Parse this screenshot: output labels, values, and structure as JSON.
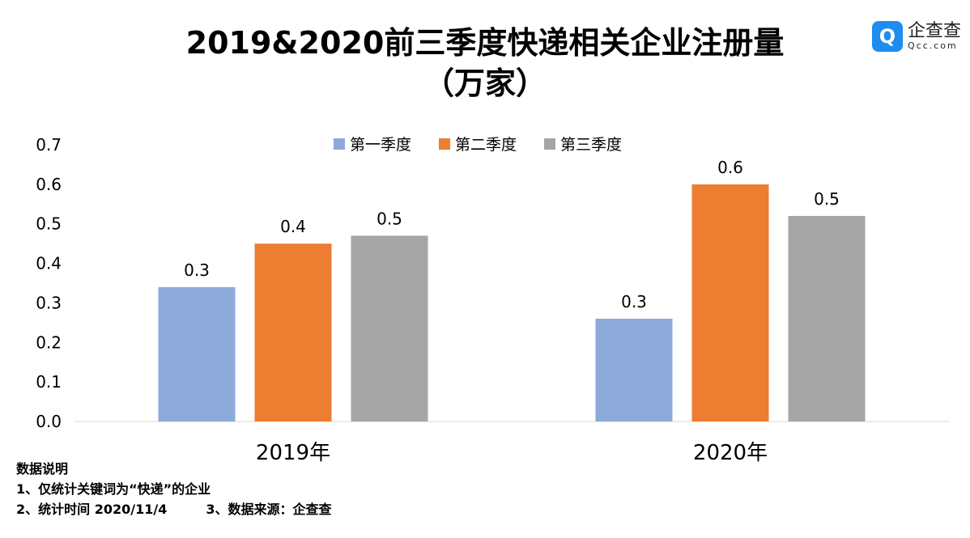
{
  "chart_data": {
    "type": "bar",
    "title": "2019&2020前三季度快递相关企业注册量",
    "subtitle": "（万家）",
    "categories": [
      "2019年",
      "2020年"
    ],
    "series": [
      {
        "name": "第一季度",
        "color": "#8eaadb",
        "values": [
          0.34,
          0.26
        ],
        "labels": [
          "0.3",
          "0.3"
        ]
      },
      {
        "name": "第二季度",
        "color": "#ed7d31",
        "values": [
          0.45,
          0.6
        ],
        "labels": [
          "0.4",
          "0.6"
        ]
      },
      {
        "name": "第三季度",
        "color": "#a5a5a5",
        "values": [
          0.47,
          0.52
        ],
        "labels": [
          "0.5",
          "0.5"
        ]
      }
    ],
    "ylim": [
      0,
      0.7
    ],
    "yticks": [
      "0.0",
      "0.1",
      "0.2",
      "0.3",
      "0.4",
      "0.5",
      "0.6",
      "0.7"
    ],
    "grid": false,
    "legend": "top-center"
  },
  "logo": {
    "icon": "Q",
    "cn": "企查查",
    "en": "Qcc.com"
  },
  "notes": {
    "heading": "数据说明",
    "line1": "1、仅统计关键词为“快递”的企业",
    "line2a": "2、统计时间 2020/11/4",
    "line2b": "3、数据来源：企查查"
  }
}
